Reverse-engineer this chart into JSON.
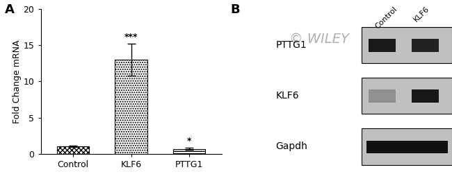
{
  "panel_A": {
    "categories": [
      "Control",
      "KLF6",
      "PTTG1"
    ],
    "values": [
      1.0,
      13.0,
      0.7
    ],
    "errors": [
      0.1,
      2.2,
      0.15
    ],
    "ylabel": "Fold Change mRNA",
    "ylim": [
      0,
      20
    ],
    "yticks": [
      0,
      5,
      10,
      15,
      20
    ],
    "significance": [
      "",
      "***",
      "*"
    ],
    "panel_label": "A"
  },
  "panel_B": {
    "panel_label": "B",
    "watermark": "© WILEY",
    "watermark_color": "#b0b0b0",
    "col_labels": [
      "Control",
      "KLF6"
    ],
    "row_labels": [
      "PTTG1",
      "KLF6",
      "Gapdh"
    ],
    "label_fontsize": 10,
    "col_label_fontsize": 8
  },
  "figure": {
    "bg_color": "#ffffff",
    "text_color": "#000000"
  }
}
